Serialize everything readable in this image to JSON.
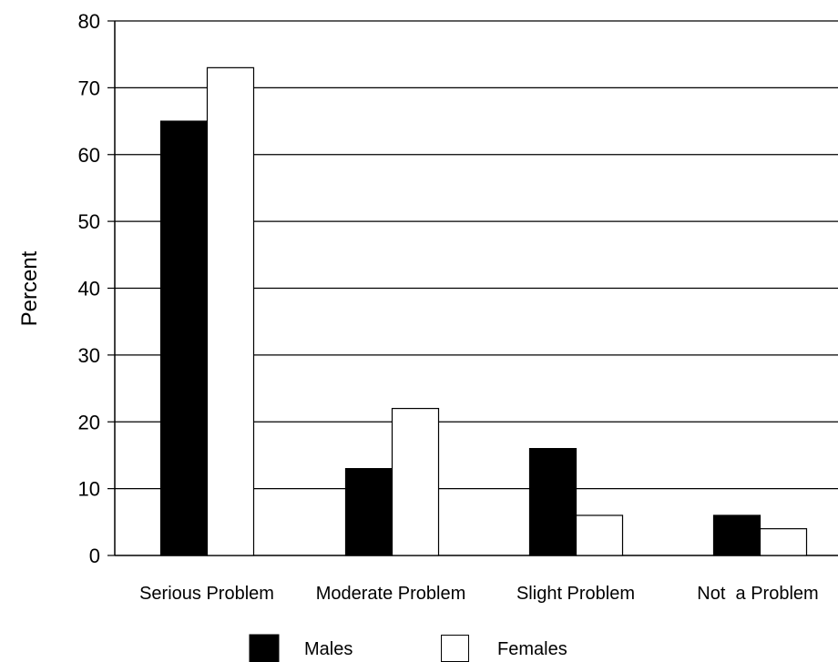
{
  "chart_data": {
    "type": "bar",
    "title": "",
    "xlabel": "",
    "ylabel": "Percent",
    "ylim": [
      0,
      80
    ],
    "yticks": [
      0,
      10,
      20,
      30,
      40,
      50,
      60,
      70,
      80
    ],
    "grid": true,
    "legend_position": "bottom",
    "categories": [
      "Serious Problem",
      "Moderate Problem",
      "Slight Problem",
      "Not  a Problem"
    ],
    "series": [
      {
        "name": "Males",
        "color": "#000000",
        "values": [
          65,
          13,
          16,
          6
        ]
      },
      {
        "name": "Females",
        "color": "#ffffff",
        "values": [
          73,
          22,
          6,
          4
        ]
      }
    ]
  }
}
